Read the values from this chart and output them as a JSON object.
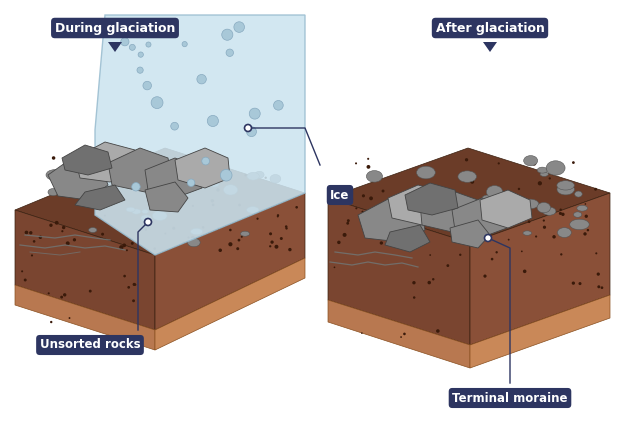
{
  "bg_color": "#ffffff",
  "label_bg": "#2d3561",
  "label_fg": "#ffffff",
  "label_fontsize": 8.5,
  "labels": {
    "during": "During glaciation",
    "after": "After glaciation",
    "ice": "Ice",
    "unsorted": "Unsorted rocks",
    "terminal": "Terminal moraine"
  },
  "soil_top": "#6b3c28",
  "soil_left": "#7a4530",
  "soil_right": "#8a5038",
  "soil_base_left": "#b87850",
  "soil_base_right": "#c98858",
  "dot_color": "#3a1a0a",
  "ice_fill": "#cce4f0",
  "ice_edge": "#9abdd0",
  "rock_dark": "#707070",
  "rock_mid": "#888888",
  "rock_light": "#aaaaaa",
  "connector_color": "#2d3561",
  "stream_color": "#707878"
}
